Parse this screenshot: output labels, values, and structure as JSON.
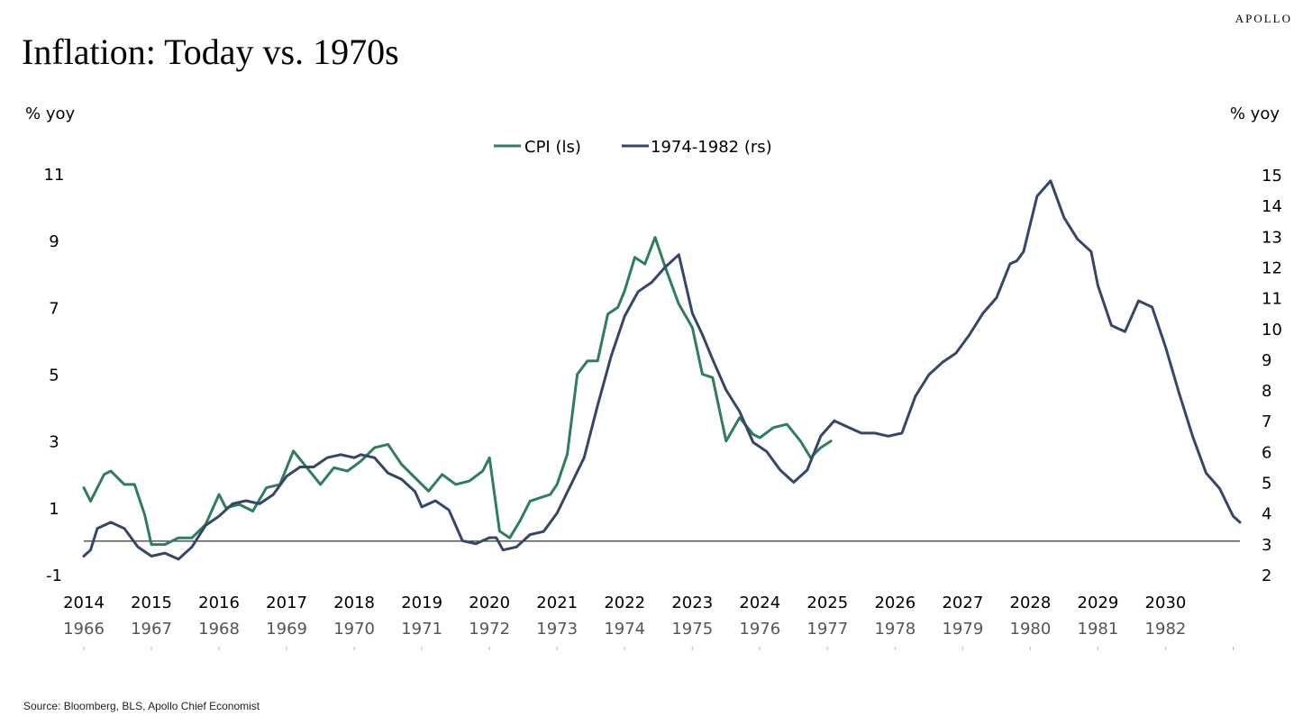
{
  "brand": "APOLLO",
  "source": "Source: Bloomberg, BLS, Apollo Chief Economist",
  "chart_data": {
    "type": "line",
    "title": "Inflation: Today vs. 1970s",
    "ylabel_left": "% yoy",
    "ylabel_right": "% yoy",
    "ylim_left": [
      -1,
      11
    ],
    "yticks_left": [
      -1,
      1,
      3,
      5,
      7,
      9,
      11
    ],
    "ylim_right": [
      2,
      15
    ],
    "yticks_right": [
      2,
      3,
      4,
      5,
      6,
      7,
      8,
      9,
      10,
      11,
      12,
      13,
      14,
      15
    ],
    "xlim": [
      2014,
      2031.1
    ],
    "xticks_top": [
      "2014",
      "2015",
      "2016",
      "2017",
      "2018",
      "2019",
      "2020",
      "2021",
      "2022",
      "2023",
      "2024",
      "2025",
      "2026",
      "2027",
      "2028",
      "2029",
      "2030"
    ],
    "xticks_bottom": [
      "1966",
      "1967",
      "1968",
      "1969",
      "1970",
      "1971",
      "1972",
      "1973",
      "1974",
      "1975",
      "1976",
      "1977",
      "1978",
      "1979",
      "1980",
      "1981",
      "1982"
    ],
    "legend_position": "top-center",
    "series": [
      {
        "name": "CPI (ls)",
        "axis": "left",
        "color": "#2e7d5b",
        "x": [
          2014,
          2014.1,
          2014.3,
          2014.4,
          2014.6,
          2014.75,
          2014.9,
          2015,
          2015.2,
          2015.4,
          2015.6,
          2015.8,
          2016,
          2016.1,
          2016.3,
          2016.5,
          2016.7,
          2016.9,
          2017.1,
          2017.3,
          2017.5,
          2017.7,
          2017.9,
          2018.1,
          2018.3,
          2018.5,
          2018.7,
          2018.9,
          2019.1,
          2019.3,
          2019.5,
          2019.7,
          2019.9,
          2020,
          2020.15,
          2020.3,
          2020.45,
          2020.6,
          2020.75,
          2020.9,
          2021,
          2021.15,
          2021.3,
          2021.45,
          2021.6,
          2021.75,
          2021.9,
          2022,
          2022.15,
          2022.3,
          2022.45,
          2022.6,
          2022.8,
          2023,
          2023.15,
          2023.3,
          2023.5,
          2023.7,
          2023.9,
          2024,
          2024.2,
          2024.4,
          2024.6,
          2024.75,
          2024.9,
          2025.05
        ],
        "values": [
          1.6,
          1.2,
          2.0,
          2.1,
          1.7,
          1.7,
          0.8,
          -0.1,
          -0.1,
          0.1,
          0.1,
          0.5,
          1.4,
          1.0,
          1.1,
          0.9,
          1.6,
          1.7,
          2.7,
          2.2,
          1.7,
          2.2,
          2.1,
          2.4,
          2.8,
          2.9,
          2.3,
          1.9,
          1.5,
          2.0,
          1.7,
          1.8,
          2.1,
          2.5,
          0.3,
          0.1,
          0.6,
          1.2,
          1.3,
          1.4,
          1.7,
          2.6,
          5.0,
          5.4,
          5.4,
          6.8,
          7.0,
          7.5,
          8.5,
          8.3,
          9.1,
          8.2,
          7.1,
          6.4,
          5.0,
          4.9,
          3.0,
          3.7,
          3.2,
          3.1,
          3.4,
          3.5,
          3.0,
          2.5,
          2.8,
          3.0
        ]
      },
      {
        "name": "1974-1982 (rs)",
        "axis": "right",
        "color": "#34476a",
        "x": [
          2014,
          2014.1,
          2014.2,
          2014.4,
          2014.6,
          2014.8,
          2015,
          2015.2,
          2015.4,
          2015.6,
          2015.8,
          2016,
          2016.2,
          2016.4,
          2016.6,
          2016.8,
          2017,
          2017.2,
          2017.4,
          2017.6,
          2017.8,
          2018,
          2018.1,
          2018.3,
          2018.5,
          2018.7,
          2018.9,
          2019,
          2019.2,
          2019.4,
          2019.6,
          2019.8,
          2020,
          2020.1,
          2020.2,
          2020.4,
          2020.6,
          2020.8,
          2021,
          2021.2,
          2021.4,
          2021.6,
          2021.8,
          2022,
          2022.1,
          2022.2,
          2022.4,
          2022.6,
          2022.8,
          2023,
          2023.15,
          2023.3,
          2023.5,
          2023.7,
          2023.9,
          2024.1,
          2024.3,
          2024.5,
          2024.7,
          2024.9,
          2025.1,
          2025.3,
          2025.5,
          2025.7,
          2025.9,
          2026.1,
          2026.3,
          2026.5,
          2026.7,
          2026.9,
          2027.1,
          2027.3,
          2027.5,
          2027.7,
          2027.8,
          2027.9,
          2028.1,
          2028.3,
          2028.5,
          2028.7,
          2028.9,
          2029,
          2029.2,
          2029.4,
          2029.6,
          2029.8,
          2030,
          2030.2,
          2030.4,
          2030.6,
          2030.8,
          2031,
          2031.1
        ],
        "values": [
          2.6,
          2.8,
          3.5,
          3.7,
          3.5,
          2.9,
          2.6,
          2.7,
          2.5,
          2.9,
          3.6,
          3.9,
          4.3,
          4.4,
          4.3,
          4.6,
          5.2,
          5.5,
          5.5,
          5.8,
          5.9,
          5.8,
          5.9,
          5.8,
          5.3,
          5.1,
          4.7,
          4.2,
          4.4,
          4.1,
          3.1,
          3.0,
          3.2,
          3.2,
          2.8,
          2.9,
          3.3,
          3.4,
          4.0,
          4.9,
          5.8,
          7.5,
          9.1,
          10.4,
          10.8,
          11.2,
          11.5,
          12.0,
          12.4,
          10.5,
          9.8,
          9.0,
          8.0,
          7.3,
          6.3,
          6.0,
          5.4,
          5.0,
          5.4,
          6.5,
          7.0,
          6.8,
          6.6,
          6.6,
          6.5,
          6.6,
          7.8,
          8.5,
          8.9,
          9.2,
          9.8,
          10.5,
          11.0,
          12.1,
          12.2,
          12.5,
          14.3,
          14.8,
          13.6,
          12.9,
          12.5,
          11.4,
          10.1,
          9.9,
          10.9,
          10.7,
          9.4,
          7.9,
          6.5,
          5.3,
          4.8,
          3.9,
          3.7
        ]
      }
    ]
  }
}
